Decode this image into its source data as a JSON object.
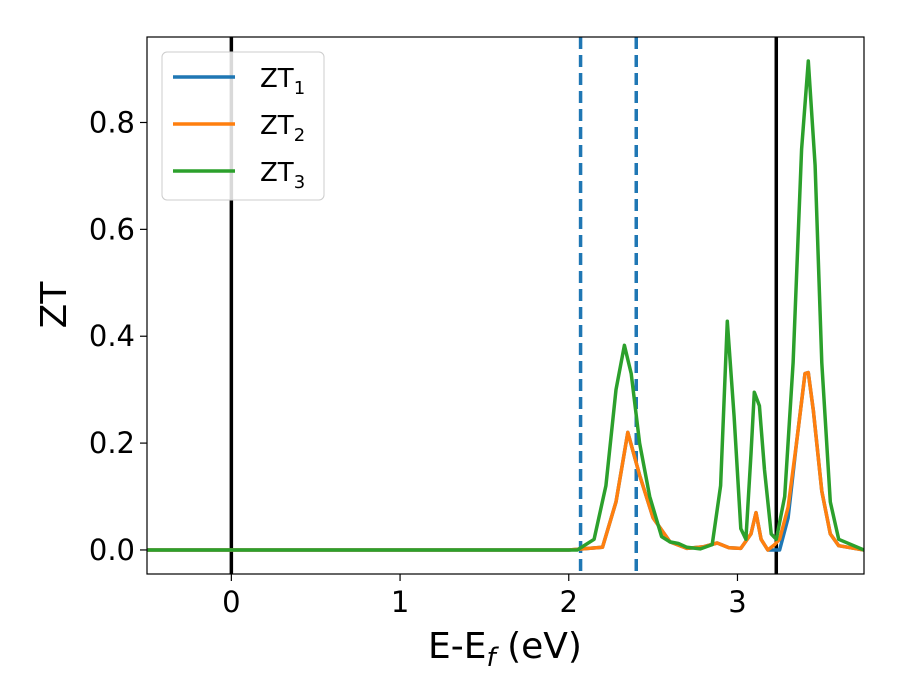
{
  "chart_data": {
    "type": "line",
    "title": "",
    "xlabel": "E-E",
    "xlabel_sub": "f",
    "xlabel_unit": " (eV)",
    "ylabel": "ZT",
    "xlim": [
      -0.5,
      3.75
    ],
    "ylim": [
      -0.045,
      0.96
    ],
    "xticks": [
      0,
      1,
      2,
      3
    ],
    "xtick_labels": [
      "0",
      "1",
      "2",
      "3"
    ],
    "yticks": [
      0.0,
      0.2,
      0.4,
      0.6,
      0.8
    ],
    "ytick_labels": [
      "0.0",
      "0.2",
      "0.4",
      "0.6",
      "0.8"
    ],
    "grid": false,
    "legend_position": "top-left",
    "vlines": [
      {
        "x": 0.0,
        "style": "solid",
        "color": "#000000"
      },
      {
        "x": 2.07,
        "style": "dashed",
        "color": "#1f77b4"
      },
      {
        "x": 2.4,
        "style": "dashed",
        "color": "#1f77b4"
      },
      {
        "x": 3.23,
        "style": "solid",
        "color": "#000000"
      }
    ],
    "series": [
      {
        "name": "ZT",
        "name_sub": "1",
        "color": "#1f77b4",
        "x": [
          -0.5,
          2.0,
          2.2,
          2.28,
          2.35,
          2.42,
          2.5,
          2.6,
          2.7,
          2.8,
          2.88,
          2.95,
          3.02,
          3.08,
          3.11,
          3.14,
          3.18,
          3.22,
          3.25,
          3.3,
          3.35,
          3.4,
          3.42,
          3.45,
          3.5,
          3.55,
          3.6,
          3.75
        ],
        "y": [
          0.0,
          0.0,
          0.005,
          0.09,
          0.22,
          0.14,
          0.06,
          0.015,
          0.003,
          0.006,
          0.013,
          0.004,
          0.003,
          0.03,
          0.07,
          0.02,
          0.0,
          0.0,
          0.0,
          0.06,
          0.2,
          0.33,
          0.332,
          0.26,
          0.11,
          0.03,
          0.008,
          0.0
        ]
      },
      {
        "name": "ZT",
        "name_sub": "2",
        "color": "#ff7f0e",
        "x": [
          -0.5,
          2.0,
          2.2,
          2.28,
          2.35,
          2.42,
          2.5,
          2.6,
          2.7,
          2.8,
          2.88,
          2.95,
          3.02,
          3.08,
          3.11,
          3.14,
          3.18,
          3.22,
          3.25,
          3.3,
          3.35,
          3.4,
          3.42,
          3.45,
          3.5,
          3.55,
          3.6,
          3.75
        ],
        "y": [
          0.0,
          0.0,
          0.005,
          0.09,
          0.22,
          0.14,
          0.06,
          0.015,
          0.003,
          0.006,
          0.013,
          0.004,
          0.003,
          0.03,
          0.07,
          0.02,
          0.0,
          0.01,
          0.02,
          0.08,
          0.2,
          0.33,
          0.332,
          0.26,
          0.11,
          0.03,
          0.008,
          0.0
        ]
      },
      {
        "name": "ZT",
        "name_sub": "3",
        "color": "#2ca02c",
        "x": [
          -0.5,
          2.05,
          2.15,
          2.22,
          2.28,
          2.33,
          2.37,
          2.42,
          2.48,
          2.55,
          2.6,
          2.65,
          2.7,
          2.78,
          2.85,
          2.9,
          2.94,
          2.98,
          3.02,
          3.05,
          3.08,
          3.1,
          3.13,
          3.16,
          3.2,
          3.23,
          3.28,
          3.33,
          3.38,
          3.42,
          3.46,
          3.5,
          3.55,
          3.6,
          3.75
        ],
        "y": [
          0.0,
          0.0,
          0.02,
          0.12,
          0.3,
          0.383,
          0.33,
          0.2,
          0.1,
          0.025,
          0.015,
          0.012,
          0.005,
          0.002,
          0.01,
          0.12,
          0.428,
          0.25,
          0.04,
          0.02,
          0.18,
          0.295,
          0.27,
          0.15,
          0.03,
          0.02,
          0.1,
          0.35,
          0.75,
          0.915,
          0.72,
          0.35,
          0.09,
          0.02,
          0.0
        ]
      }
    ]
  }
}
